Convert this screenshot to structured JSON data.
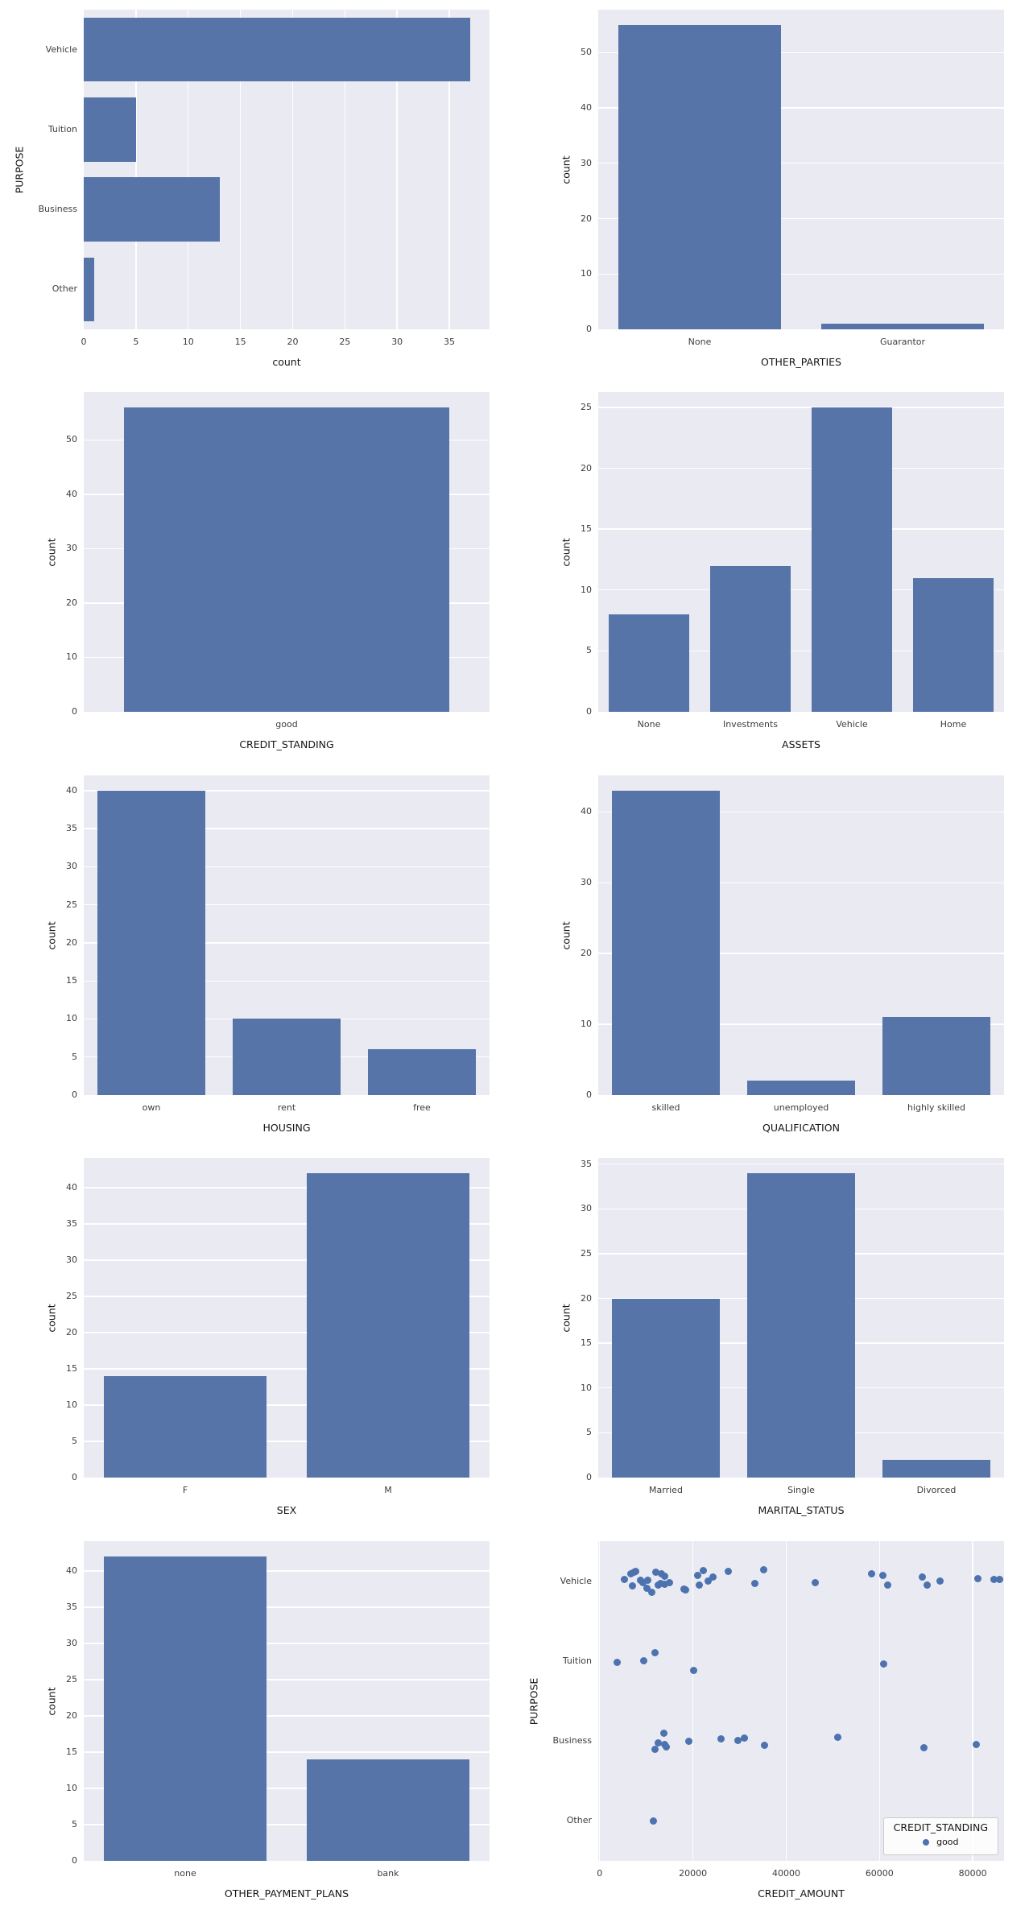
{
  "style": {
    "background": "#ffffff",
    "plot_background": "#e9eaf2",
    "grid_color": "#ffffff",
    "bar_color": "#5674a8",
    "point_color": "#4c72b0",
    "tick_color": "#3d3d3d",
    "label_color": "#141414",
    "legend_background": "rgba(255,255,255,0.85)",
    "legend_border": "#cccccc"
  },
  "chart_data": [
    {
      "id": "purpose",
      "type": "barh",
      "row": 0,
      "col": 0,
      "title": "",
      "ylabel": "PURPOSE",
      "xlabel": "count",
      "categories": [
        "Vehicle",
        "Tuition",
        "Business",
        "Other"
      ],
      "values": [
        37,
        5,
        13,
        1
      ],
      "xticks": [
        0,
        5,
        10,
        15,
        20,
        25,
        30,
        35
      ],
      "xmax": 38.85,
      "grid": true
    },
    {
      "id": "other-parties",
      "type": "bar",
      "row": 0,
      "col": 1,
      "title": "",
      "ylabel": "count",
      "xlabel": "OTHER_PARTIES",
      "categories": [
        "None",
        "Guarantor"
      ],
      "values": [
        55,
        1
      ],
      "yticks": [
        0,
        10,
        20,
        30,
        40,
        50
      ],
      "ymax": 57.75,
      "grid": true
    },
    {
      "id": "credit-standing",
      "type": "bar",
      "row": 1,
      "col": 0,
      "title": "",
      "ylabel": "count",
      "xlabel": "CREDIT_STANDING",
      "categories": [
        "good"
      ],
      "values": [
        56
      ],
      "yticks": [
        0,
        10,
        20,
        30,
        40,
        50
      ],
      "ymax": 58.8,
      "grid": true
    },
    {
      "id": "assets",
      "type": "bar",
      "row": 1,
      "col": 1,
      "title": "",
      "ylabel": "count",
      "xlabel": "ASSETS",
      "categories": [
        "None",
        "Investments",
        "Vehicle",
        "Home"
      ],
      "values": [
        8,
        12,
        25,
        11
      ],
      "yticks": [
        0,
        5,
        10,
        15,
        20,
        25
      ],
      "ymax": 26.25,
      "grid": true
    },
    {
      "id": "housing",
      "type": "bar",
      "row": 2,
      "col": 0,
      "title": "",
      "ylabel": "count",
      "xlabel": "HOUSING",
      "categories": [
        "own",
        "rent",
        "free"
      ],
      "values": [
        40,
        10,
        6
      ],
      "yticks": [
        0,
        5,
        10,
        15,
        20,
        25,
        30,
        35,
        40
      ],
      "ymax": 42,
      "grid": true
    },
    {
      "id": "qualification",
      "type": "bar",
      "row": 2,
      "col": 1,
      "title": "",
      "ylabel": "count",
      "xlabel": "QUALIFICATION",
      "categories": [
        "skilled",
        "unemployed",
        "highly skilled"
      ],
      "values": [
        43,
        2,
        11
      ],
      "yticks": [
        0,
        10,
        20,
        30,
        40
      ],
      "ymax": 45.15,
      "grid": true
    },
    {
      "id": "sex",
      "type": "bar",
      "row": 3,
      "col": 0,
      "title": "",
      "ylabel": "count",
      "xlabel": "SEX",
      "categories": [
        "F",
        "M"
      ],
      "values": [
        14,
        42
      ],
      "yticks": [
        0,
        5,
        10,
        15,
        20,
        25,
        30,
        35,
        40
      ],
      "ymax": 44.1,
      "grid": true
    },
    {
      "id": "marital-status",
      "type": "bar",
      "row": 3,
      "col": 1,
      "title": "",
      "ylabel": "count",
      "xlabel": "MARITAL_STATUS",
      "categories": [
        "Married",
        "Single",
        "Divorced"
      ],
      "values": [
        20,
        34,
        2
      ],
      "yticks": [
        0,
        5,
        10,
        15,
        20,
        25,
        30,
        35
      ],
      "ymax": 35.7,
      "grid": true
    },
    {
      "id": "other-payment-plans",
      "type": "bar",
      "row": 4,
      "col": 0,
      "title": "",
      "ylabel": "count",
      "xlabel": "OTHER_PAYMENT_PLANS",
      "categories": [
        "none",
        "bank"
      ],
      "values": [
        42,
        14
      ],
      "yticks": [
        0,
        5,
        10,
        15,
        20,
        25,
        30,
        35,
        40
      ],
      "ymax": 44.1,
      "grid": true
    },
    {
      "id": "credit-amount-by-purpose",
      "type": "strip",
      "row": 4,
      "col": 1,
      "title": "",
      "ylabel": "PURPOSE",
      "xlabel": "CREDIT_AMOUNT",
      "categories": [
        "Vehicle",
        "Tuition",
        "Business",
        "Other"
      ],
      "xticks": [
        0,
        20000,
        40000,
        60000,
        80000
      ],
      "xlim": [
        -300,
        86700
      ],
      "grid": true,
      "legend": {
        "title": "CREDIT_STANDING",
        "entries": [
          "good"
        ]
      },
      "series": {
        "Vehicle": [
          [
            5300,
            -0.02
          ],
          [
            6700,
            -0.09
          ],
          [
            7000,
            0.06
          ],
          [
            7400,
            -0.11
          ],
          [
            7700,
            -0.12
          ],
          [
            8700,
            -0.01
          ],
          [
            9200,
            0.02
          ],
          [
            10100,
            0.09
          ],
          [
            10400,
            -0.01
          ],
          [
            11200,
            0.14
          ],
          [
            12000,
            -0.11
          ],
          [
            12600,
            0.05
          ],
          [
            13000,
            0.03
          ],
          [
            13300,
            -0.09
          ],
          [
            13900,
            -0.06
          ],
          [
            14000,
            0.04
          ],
          [
            15000,
            0.02
          ],
          [
            18000,
            0.1
          ],
          [
            18500,
            0.11
          ],
          [
            21000,
            -0.07
          ],
          [
            21400,
            0.05
          ],
          [
            22200,
            -0.13
          ],
          [
            23300,
            0.0
          ],
          [
            24300,
            -0.05
          ],
          [
            27500,
            -0.12
          ],
          [
            33300,
            0.03
          ],
          [
            35100,
            -0.14
          ],
          [
            46300,
            0.02
          ],
          [
            58300,
            -0.09
          ],
          [
            60700,
            -0.07
          ],
          [
            61700,
            0.05
          ],
          [
            69200,
            -0.05
          ],
          [
            70300,
            0.05
          ],
          [
            72900,
            0.0
          ],
          [
            81100,
            -0.03
          ],
          [
            84600,
            -0.02
          ],
          [
            85700,
            -0.02
          ]
        ],
        "Tuition": [
          [
            3800,
            0.02
          ],
          [
            9400,
            0.0
          ],
          [
            11800,
            -0.1
          ],
          [
            20200,
            0.12
          ],
          [
            60900,
            0.04
          ]
        ],
        "Business": [
          [
            11800,
            0.1
          ],
          [
            12500,
            0.02
          ],
          [
            13700,
            -0.1
          ],
          [
            13900,
            0.04
          ],
          [
            14200,
            0.07
          ],
          [
            19200,
            0.0
          ],
          [
            26000,
            -0.03
          ],
          [
            29600,
            -0.01
          ],
          [
            31000,
            -0.04
          ],
          [
            35400,
            0.05
          ],
          [
            51100,
            -0.05
          ],
          [
            69600,
            0.08
          ],
          [
            80700,
            0.04
          ]
        ],
        "Other": [
          [
            11500,
            0.0
          ]
        ]
      }
    }
  ]
}
